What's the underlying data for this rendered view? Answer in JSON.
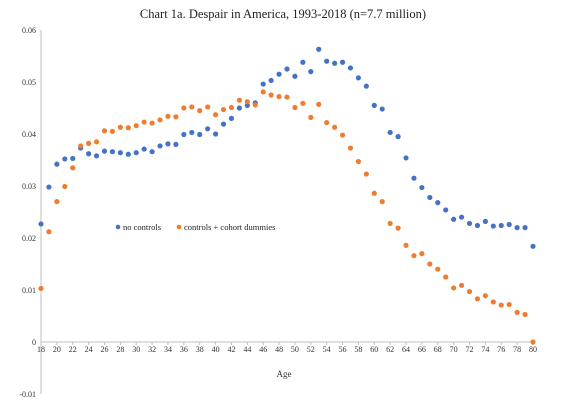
{
  "chart_data": {
    "type": "scatter",
    "title": "Chart 1a.  Despair in America, 1993-2018 (n=7.7 million)",
    "xlabel": "Age",
    "ylabel": "",
    "xlim": [
      18,
      80
    ],
    "ylim": [
      -0.01,
      0.06
    ],
    "x_ticks": [
      "18",
      "20",
      "22",
      "24",
      "26",
      "28",
      "30",
      "32",
      "34",
      "36",
      "38",
      "40",
      "42",
      "44",
      "46",
      "48",
      "50",
      "52",
      "54",
      "56",
      "58",
      "60",
      "62",
      "64",
      "66",
      "68",
      "70",
      "72",
      "74",
      "76",
      "78",
      "80"
    ],
    "y_ticks": [
      "0.06",
      "0.05",
      "0.04",
      "0.03",
      "0.02",
      "0.01",
      "0",
      "-0.01"
    ],
    "y_tick_values": [
      0.06,
      0.05,
      0.04,
      0.03,
      0.02,
      0.01,
      0,
      -0.01
    ],
    "grid": false,
    "legend_position": "middle-left",
    "x": [
      18,
      19,
      20,
      21,
      22,
      23,
      24,
      25,
      26,
      27,
      28,
      29,
      30,
      31,
      32,
      33,
      34,
      35,
      36,
      37,
      38,
      39,
      40,
      41,
      42,
      43,
      44,
      45,
      46,
      47,
      48,
      49,
      50,
      51,
      52,
      53,
      54,
      55,
      56,
      57,
      58,
      59,
      60,
      61,
      62,
      63,
      64,
      65,
      66,
      67,
      68,
      69,
      70,
      71,
      72,
      73,
      74,
      75,
      76,
      77,
      78,
      79,
      80
    ],
    "series": [
      {
        "name": "no controls",
        "color": "#4472C4",
        "values": [
          0.0227,
          0.0298,
          0.0342,
          0.0352,
          0.0353,
          0.0373,
          0.0362,
          0.0358,
          0.0367,
          0.0366,
          0.0364,
          0.0361,
          0.0364,
          0.0371,
          0.0366,
          0.0377,
          0.0381,
          0.038,
          0.0399,
          0.0403,
          0.0399,
          0.041,
          0.04,
          0.0419,
          0.043,
          0.045,
          0.0455,
          0.046,
          0.0496,
          0.0503,
          0.0515,
          0.0525,
          0.0511,
          0.0538,
          0.052,
          0.0563,
          0.054,
          0.0536,
          0.0538,
          0.0527,
          0.0508,
          0.0492,
          0.0455,
          0.0448,
          0.0403,
          0.0395,
          0.0354,
          0.0315,
          0.0297,
          0.0278,
          0.0268,
          0.0254,
          0.0236,
          0.024,
          0.0228,
          0.0224,
          0.0232,
          0.0223,
          0.0224,
          0.0226,
          0.022,
          0.022,
          0.0184
        ]
      },
      {
        "name": "controls + cohort dummies",
        "color": "#ED7D31",
        "values": [
          0.0103,
          0.0212,
          0.027,
          0.0299,
          0.0335,
          0.0377,
          0.0382,
          0.0385,
          0.0406,
          0.0405,
          0.0413,
          0.0412,
          0.0416,
          0.0423,
          0.0421,
          0.0427,
          0.0434,
          0.0433,
          0.045,
          0.0452,
          0.0445,
          0.0452,
          0.0437,
          0.0447,
          0.0451,
          0.0465,
          0.0462,
          0.0456,
          0.0481,
          0.0475,
          0.0472,
          0.0471,
          0.0451,
          0.0459,
          0.0432,
          0.0457,
          0.0422,
          0.0413,
          0.0398,
          0.0373,
          0.0347,
          0.0323,
          0.0286,
          0.027,
          0.0228,
          0.0219,
          0.0186,
          0.0166,
          0.017,
          0.015,
          0.014,
          0.0125,
          0.0104,
          0.0109,
          0.0097,
          0.0083,
          0.0089,
          0.0077,
          0.0071,
          0.0072,
          0.0057,
          0.0053,
          0.0
        ]
      }
    ]
  }
}
